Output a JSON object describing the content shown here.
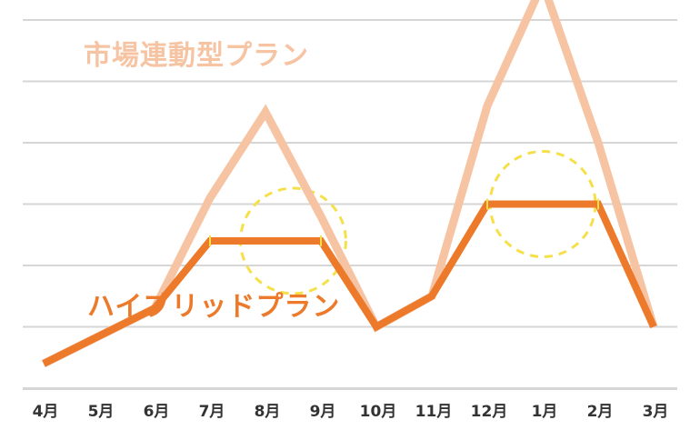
{
  "chart_data": {
    "type": "line",
    "categories": [
      "4月",
      "5月",
      "6月",
      "7月",
      "8月",
      "9月",
      "10月",
      "11月",
      "12月",
      "1月",
      "2月",
      "3月"
    ],
    "series": [
      {
        "name": "市場連動型プラン",
        "color": "#f6c4a3",
        "values": [
          0.4,
          0.85,
          1.3,
          3.1,
          4.5,
          2.8,
          1.0,
          1.5,
          4.6,
          6.6,
          4.0,
          1.0
        ]
      },
      {
        "name": "ハイブリッドプラン",
        "color": "#ec7a2a",
        "values": [
          0.4,
          0.85,
          1.3,
          2.4,
          2.4,
          2.4,
          1.0,
          1.5,
          3.0,
          3.0,
          3.0,
          1.0
        ]
      }
    ],
    "ylim": [
      -1,
      6
    ],
    "grid": true,
    "annotations": [
      {
        "type": "dashed-circle",
        "color": "#f5e04a",
        "x_center": 4.5,
        "y_center": 2.4,
        "radius_months": 0.95
      },
      {
        "type": "dashed-circle",
        "color": "#f5e04a",
        "x_center": 9.0,
        "y_center": 3.0,
        "radius_months": 0.95
      }
    ]
  },
  "labels": {
    "market": "市場連動型プラン",
    "hybrid": "ハイブリッドプラン"
  }
}
